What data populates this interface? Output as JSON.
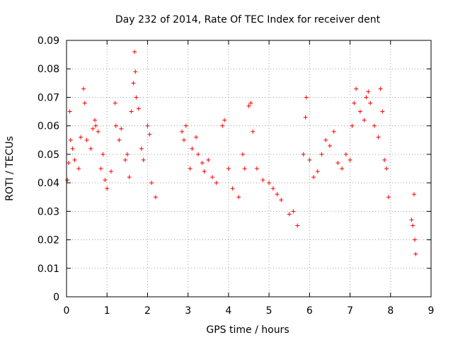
{
  "chart_data": {
    "type": "scatter",
    "title": "Day 232 of 2014, Rate Of TEC Index for receiver dent",
    "xlabel": "GPS time / hours",
    "ylabel": "ROTI / TECUs",
    "xlim": [
      0,
      9
    ],
    "ylim": [
      0,
      0.09
    ],
    "xticks": [
      "0",
      "1",
      "2",
      "3",
      "4",
      "5",
      "6",
      "7",
      "8",
      "9"
    ],
    "yticks": [
      "0",
      "0.01",
      "0.02",
      "0.03",
      "0.04",
      "0.05",
      "0.06",
      "0.07",
      "0.08",
      "0.09"
    ],
    "grid": true,
    "marker": "+",
    "series_color": "#ff0000",
    "series": [
      {
        "name": "ROTI",
        "points": [
          [
            0.02,
            0.041
          ],
          [
            0.05,
            0.047
          ],
          [
            0.08,
            0.065
          ],
          [
            0.1,
            0.055
          ],
          [
            0.15,
            0.052
          ],
          [
            0.2,
            0.048
          ],
          [
            0.3,
            0.045
          ],
          [
            0.35,
            0.056
          ],
          [
            0.42,
            0.073
          ],
          [
            0.45,
            0.068
          ],
          [
            0.5,
            0.055
          ],
          [
            0.6,
            0.052
          ],
          [
            0.65,
            0.059
          ],
          [
            0.7,
            0.062
          ],
          [
            0.72,
            0.06
          ],
          [
            0.78,
            0.058
          ],
          [
            0.85,
            0.045
          ],
          [
            0.9,
            0.05
          ],
          [
            0.95,
            0.041
          ],
          [
            1.0,
            0.038
          ],
          [
            1.1,
            0.044
          ],
          [
            1.2,
            0.068
          ],
          [
            1.22,
            0.06
          ],
          [
            1.3,
            0.055
          ],
          [
            1.35,
            0.059
          ],
          [
            1.45,
            0.048
          ],
          [
            1.5,
            0.05
          ],
          [
            1.55,
            0.042
          ],
          [
            1.6,
            0.065
          ],
          [
            1.65,
            0.075
          ],
          [
            1.68,
            0.086
          ],
          [
            1.7,
            0.079
          ],
          [
            1.72,
            0.07
          ],
          [
            1.78,
            0.066
          ],
          [
            1.85,
            0.052
          ],
          [
            1.9,
            0.048
          ],
          [
            2.0,
            0.06
          ],
          [
            2.05,
            0.057
          ],
          [
            2.1,
            0.04
          ],
          [
            2.2,
            0.035
          ],
          [
            2.85,
            0.058
          ],
          [
            2.9,
            0.055
          ],
          [
            2.95,
            0.06
          ],
          [
            3.05,
            0.045
          ],
          [
            3.1,
            0.052
          ],
          [
            3.2,
            0.056
          ],
          [
            3.25,
            0.05
          ],
          [
            3.35,
            0.047
          ],
          [
            3.4,
            0.044
          ],
          [
            3.5,
            0.048
          ],
          [
            3.6,
            0.042
          ],
          [
            3.7,
            0.04
          ],
          [
            3.85,
            0.06
          ],
          [
            3.9,
            0.062
          ],
          [
            4.0,
            0.045
          ],
          [
            4.1,
            0.038
          ],
          [
            4.25,
            0.035
          ],
          [
            4.35,
            0.05
          ],
          [
            4.4,
            0.045
          ],
          [
            4.5,
            0.067
          ],
          [
            4.55,
            0.068
          ],
          [
            4.6,
            0.058
          ],
          [
            4.7,
            0.045
          ],
          [
            4.85,
            0.041
          ],
          [
            5.0,
            0.04
          ],
          [
            5.1,
            0.038
          ],
          [
            5.2,
            0.036
          ],
          [
            5.3,
            0.034
          ],
          [
            5.5,
            0.029
          ],
          [
            5.6,
            0.03
          ],
          [
            5.7,
            0.025
          ],
          [
            5.85,
            0.05
          ],
          [
            5.9,
            0.063
          ],
          [
            5.92,
            0.07
          ],
          [
            6.0,
            0.048
          ],
          [
            6.1,
            0.042
          ],
          [
            6.2,
            0.044
          ],
          [
            6.3,
            0.05
          ],
          [
            6.4,
            0.055
          ],
          [
            6.5,
            0.053
          ],
          [
            6.6,
            0.058
          ],
          [
            6.7,
            0.047
          ],
          [
            6.8,
            0.045
          ],
          [
            6.9,
            0.05
          ],
          [
            7.0,
            0.048
          ],
          [
            7.05,
            0.06
          ],
          [
            7.1,
            0.068
          ],
          [
            7.15,
            0.073
          ],
          [
            7.25,
            0.065
          ],
          [
            7.35,
            0.062
          ],
          [
            7.4,
            0.07
          ],
          [
            7.45,
            0.072
          ],
          [
            7.5,
            0.068
          ],
          [
            7.6,
            0.06
          ],
          [
            7.7,
            0.056
          ],
          [
            7.75,
            0.073
          ],
          [
            7.8,
            0.065
          ],
          [
            7.85,
            0.048
          ],
          [
            7.9,
            0.045
          ],
          [
            7.95,
            0.035
          ],
          [
            8.52,
            0.027
          ],
          [
            8.55,
            0.025
          ],
          [
            8.58,
            0.036
          ],
          [
            8.6,
            0.02
          ],
          [
            8.62,
            0.015
          ]
        ]
      }
    ]
  }
}
